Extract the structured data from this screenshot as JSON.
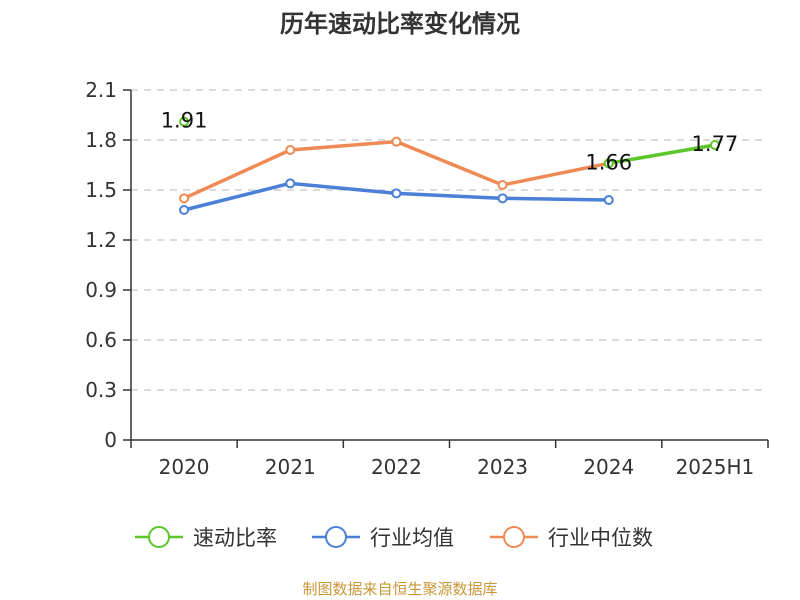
{
  "chart_data": {
    "type": "line",
    "title": "历年速动比率变化情况",
    "categories": [
      "2020",
      "2021",
      "2022",
      "2023",
      "2024",
      "2025H1"
    ],
    "ylim": [
      0,
      2.1
    ],
    "yticks": [
      "0",
      "0.3",
      "0.6",
      "0.9",
      "1.2",
      "1.5",
      "1.8",
      "2.1"
    ],
    "ytick_values": [
      0,
      0.3,
      0.6,
      0.9,
      1.2,
      1.5,
      1.8,
      2.1
    ],
    "grid": true,
    "legend_position": "bottom",
    "series": [
      {
        "name": "速动比率",
        "color": "#5cc72a",
        "values": [
          1.91,
          null,
          null,
          null,
          1.66,
          1.77
        ],
        "labels": [
          "1.91",
          null,
          null,
          null,
          "1.66",
          "1.77"
        ]
      },
      {
        "name": "行业均值",
        "color": "#4b7fd8",
        "values": [
          1.38,
          1.54,
          1.48,
          1.45,
          1.44,
          null
        ],
        "labels": [
          null,
          null,
          null,
          null,
          null,
          null
        ]
      },
      {
        "name": "行业中位数",
        "color": "#f08a55",
        "values": [
          1.45,
          1.74,
          1.79,
          1.53,
          1.66,
          null
        ],
        "labels": [
          null,
          null,
          null,
          null,
          null,
          null
        ]
      }
    ]
  },
  "source_text": "制图数据来自恒生聚源数据库"
}
